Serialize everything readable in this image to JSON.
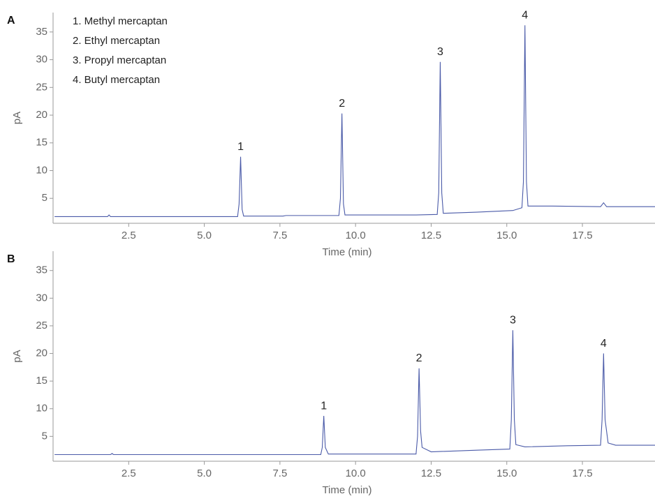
{
  "chart_data": [
    {
      "type": "line",
      "panel_label": "A",
      "x_label": "Time (min)",
      "y_label": "pA",
      "color": "#4a5aa8",
      "legend": [
        "1. Methyl mercaptan",
        "2. Ethyl mercaptan",
        "3. Propyl mercaptan",
        "4. Butyl mercaptan"
      ],
      "xlim": [
        0,
        19.9
      ],
      "ylim": [
        0.5,
        38.5
      ],
      "xticks": [
        2.5,
        {
          "value": 5,
          "label": "5.0"
        },
        7.5,
        {
          "value": 10,
          "label": "10.0"
        },
        12.5,
        {
          "value": 15,
          "label": "15.0"
        },
        17.5
      ],
      "yticks": [
        5,
        10,
        15,
        20,
        25,
        30,
        35
      ],
      "x": [
        0.05,
        1.8,
        1.85,
        1.9,
        6.1,
        6.15,
        6.2,
        6.25,
        6.3,
        7.6,
        7.7,
        9.45,
        9.5,
        9.55,
        9.6,
        9.65,
        12.0,
        12.7,
        12.75,
        12.8,
        12.85,
        12.9,
        14.0,
        15.2,
        15.5,
        15.55,
        15.6,
        15.65,
        15.7,
        16.5,
        18.1,
        18.2,
        18.3,
        19.9
      ],
      "values": [
        1.7,
        1.7,
        2.0,
        1.7,
        1.7,
        4,
        12.5,
        3,
        1.8,
        1.8,
        1.9,
        1.9,
        5,
        20.3,
        4,
        2.0,
        2.0,
        2.1,
        6,
        29.6,
        6,
        2.3,
        2.5,
        2.8,
        3.3,
        8,
        36.2,
        8,
        3.6,
        3.6,
        3.5,
        4.2,
        3.5,
        3.5
      ],
      "annotations": [
        {
          "text": "1",
          "x": 6.2,
          "y": 12.5
        },
        {
          "text": "2",
          "x": 9.55,
          "y": 20.3
        },
        {
          "text": "3",
          "x": 12.8,
          "y": 29.6
        },
        {
          "text": "4",
          "x": 15.6,
          "y": 36.2
        }
      ]
    },
    {
      "type": "line",
      "panel_label": "B",
      "x_label": "Time (min)",
      "y_label": "pA",
      "color": "#4a5aa8",
      "xlim": [
        0,
        19.9
      ],
      "ylim": [
        0.5,
        38.5
      ],
      "xticks": [
        2.5,
        {
          "value": 5,
          "label": "5.0"
        },
        7.5,
        {
          "value": 10,
          "label": "10.0"
        },
        12.5,
        {
          "value": 15,
          "label": "15.0"
        },
        17.5
      ],
      "yticks": [
        5,
        10,
        15,
        20,
        25,
        30,
        35
      ],
      "x": [
        0.05,
        1.9,
        1.95,
        2.0,
        8.85,
        8.9,
        8.95,
        9.0,
        9.1,
        12.0,
        12.05,
        12.1,
        12.15,
        12.2,
        12.5,
        14.0,
        15.1,
        15.15,
        15.2,
        15.25,
        15.3,
        15.6,
        17.0,
        18.1,
        18.15,
        18.2,
        18.25,
        18.35,
        18.6,
        19.9
      ],
      "values": [
        1.7,
        1.7,
        1.9,
        1.7,
        1.7,
        3,
        8.7,
        3,
        1.8,
        1.8,
        5,
        17.3,
        6,
        3,
        2.2,
        2.5,
        2.7,
        8,
        24.2,
        8,
        3.5,
        3.1,
        3.3,
        3.4,
        8,
        20.0,
        8,
        3.8,
        3.4,
        3.4
      ],
      "annotations": [
        {
          "text": "1",
          "x": 8.95,
          "y": 8.7
        },
        {
          "text": "2",
          "x": 12.1,
          "y": 17.3
        },
        {
          "text": "3",
          "x": 15.2,
          "y": 24.2
        },
        {
          "text": "4",
          "x": 18.2,
          "y": 20.0
        }
      ]
    }
  ]
}
